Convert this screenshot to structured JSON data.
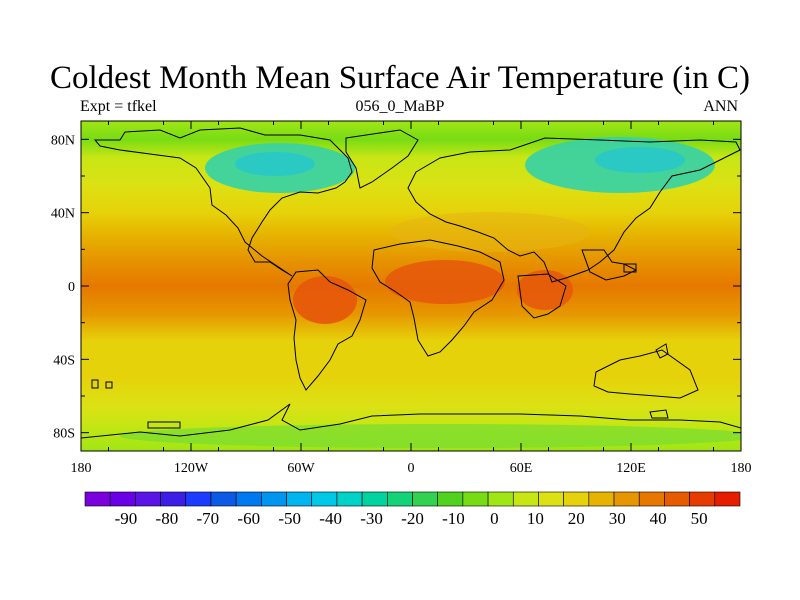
{
  "title": "Coldest Month Mean Surface Air Temperature (in C)",
  "subtitle_left": "Expt = tfkel",
  "subtitle_center": "056_0_MaBP",
  "subtitle_right": "ANN",
  "map": {
    "lon_range": [
      -180,
      180
    ],
    "lat_range": [
      -90,
      90
    ],
    "x_tick_labels": [
      "180",
      "120W",
      "60W",
      "0",
      "60E",
      "120E",
      "180"
    ],
    "y_tick_labels": [
      "80N",
      "40N",
      "0",
      "40S",
      "80S"
    ],
    "field_zonal_profile_C": [
      {
        "lat": 90,
        "value": 0
      },
      {
        "lat": 80,
        "value": -2
      },
      {
        "lat": 70,
        "value": 5
      },
      {
        "lat": 55,
        "value": 12
      },
      {
        "lat": 40,
        "value": 18
      },
      {
        "lat": 28,
        "value": 25
      },
      {
        "lat": 15,
        "value": 34
      },
      {
        "lat": 0,
        "value": 38
      },
      {
        "lat": -15,
        "value": 33
      },
      {
        "lat": -30,
        "value": 22
      },
      {
        "lat": -50,
        "value": 17
      },
      {
        "lat": -65,
        "value": 11
      },
      {
        "lat": -75,
        "value": 5
      },
      {
        "lat": -90,
        "value": 0
      }
    ]
  },
  "colorbar": {
    "labels": [
      "-90",
      "-80",
      "-70",
      "-60",
      "-50",
      "-40",
      "-30",
      "-20",
      "-10",
      "0",
      "10",
      "20",
      "30",
      "40",
      "50"
    ],
    "colors": [
      "#7a00dc",
      "#6a00e6",
      "#5a14e6",
      "#3c1ee6",
      "#1e3cff",
      "#0a5ae6",
      "#0078f0",
      "#0096f0",
      "#00b4f0",
      "#00c8e6",
      "#00d2c8",
      "#00d2a0",
      "#14d278",
      "#32d250",
      "#50d21e",
      "#78dc14",
      "#a0e614",
      "#c8e614",
      "#dce114",
      "#e6d20a",
      "#e6b400",
      "#e69600",
      "#e67800",
      "#e65a00",
      "#e63c00",
      "#e61e00"
    ]
  }
}
